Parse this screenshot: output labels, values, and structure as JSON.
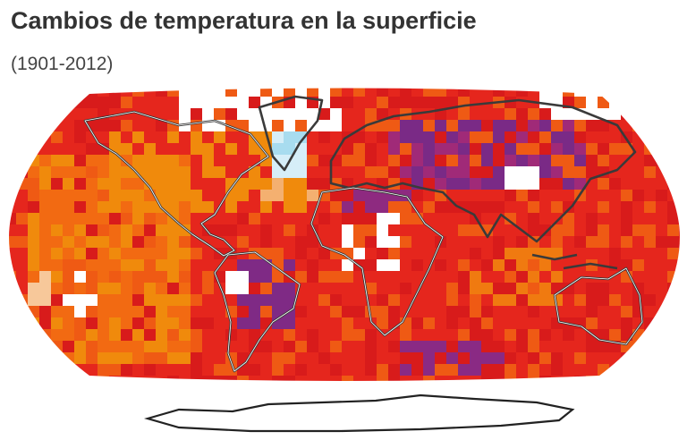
{
  "header": {
    "title": "Cambios de temperatura en la superficie",
    "subtitle": "(1901-2012)"
  }
}
